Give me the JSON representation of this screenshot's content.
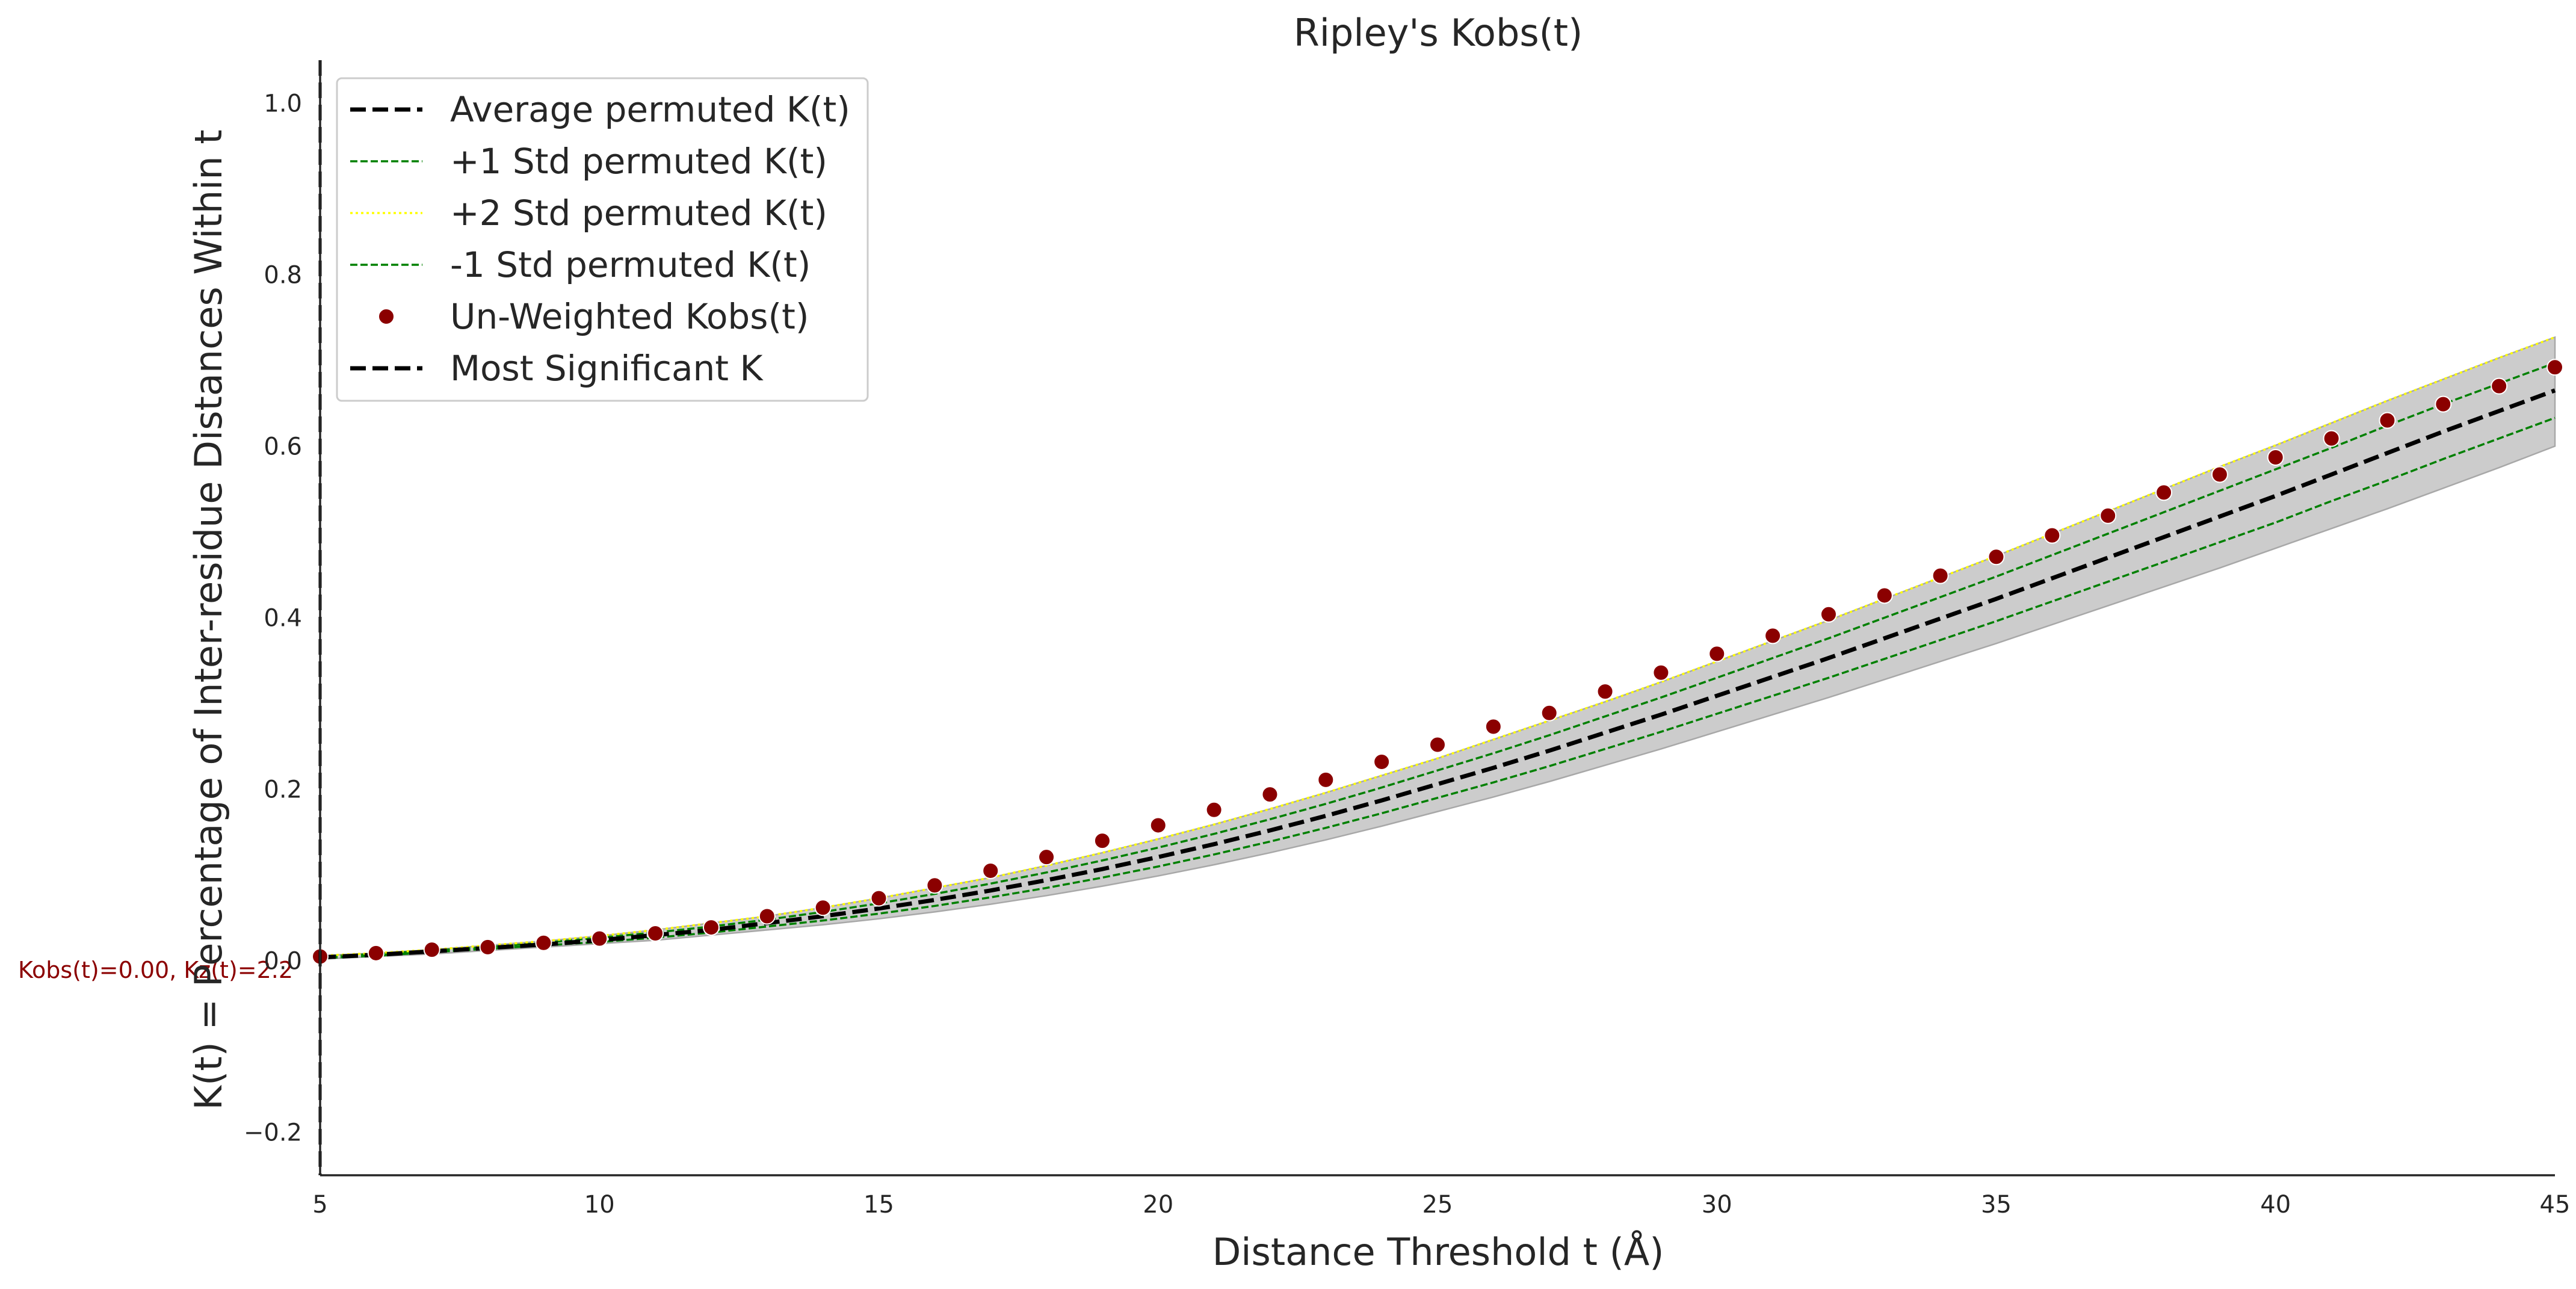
{
  "chart_data": {
    "type": "line",
    "title": "Ripley's Kobs(t)",
    "xlabel": "Distance Threshold t (Å)",
    "ylabel": "K(t) = Percentage of Inter-residue Distances Within t",
    "xlim": [
      5,
      45
    ],
    "ylim": [
      -0.25,
      1.05
    ],
    "xticks": [
      5,
      10,
      15,
      20,
      25,
      30,
      35,
      40,
      45
    ],
    "xtick_labels": [
      "5",
      "10",
      "15",
      "20",
      "25",
      "30",
      "35",
      "40",
      "45"
    ],
    "yticks": [
      -0.2,
      0.0,
      0.2,
      0.4,
      0.6,
      0.8,
      1.0
    ],
    "ytick_labels": [
      "−0.2",
      "0.0",
      "0.2",
      "0.4",
      "0.6",
      "0.8",
      "1.0"
    ],
    "grid": false,
    "legend_position": "upper-left",
    "x": [
      5,
      6,
      7,
      8,
      9,
      10,
      11,
      12,
      13,
      14,
      15,
      16,
      17,
      18,
      19,
      20,
      21,
      22,
      23,
      24,
      25,
      26,
      27,
      28,
      29,
      30,
      31,
      32,
      33,
      34,
      35,
      36,
      37,
      38,
      39,
      40,
      41,
      42,
      43,
      44,
      45
    ],
    "series": [
      {
        "name": "Average permuted K(t)",
        "style": "dashed",
        "color": "#000000",
        "values": [
          0.004,
          0.007,
          0.011,
          0.015,
          0.019,
          0.024,
          0.03,
          0.036,
          0.044,
          0.052,
          0.061,
          0.071,
          0.082,
          0.094,
          0.107,
          0.121,
          0.136,
          0.152,
          0.169,
          0.187,
          0.206,
          0.225,
          0.245,
          0.266,
          0.287,
          0.309,
          0.331,
          0.353,
          0.376,
          0.399,
          0.422,
          0.446,
          0.47,
          0.494,
          0.518,
          0.542,
          0.567,
          0.592,
          0.617,
          0.641,
          0.665
        ]
      },
      {
        "name": "+1 Std permuted K(t)",
        "style": "dashed-thin",
        "color": "#008000",
        "values": [
          0.005,
          0.008,
          0.012,
          0.016,
          0.021,
          0.027,
          0.033,
          0.04,
          0.048,
          0.057,
          0.067,
          0.078,
          0.09,
          0.103,
          0.117,
          0.132,
          0.148,
          0.165,
          0.183,
          0.202,
          0.222,
          0.242,
          0.263,
          0.285,
          0.307,
          0.33,
          0.353,
          0.376,
          0.4,
          0.424,
          0.448,
          0.473,
          0.498,
          0.523,
          0.548,
          0.573,
          0.598,
          0.624,
          0.649,
          0.673,
          0.697
        ]
      },
      {
        "name": "+2 Std permuted K(t)",
        "style": "dotted",
        "color": "#ffff00",
        "values": [
          0.006,
          0.009,
          0.013,
          0.018,
          0.023,
          0.029,
          0.036,
          0.044,
          0.052,
          0.062,
          0.073,
          0.085,
          0.097,
          0.111,
          0.126,
          0.142,
          0.159,
          0.177,
          0.196,
          0.216,
          0.236,
          0.258,
          0.28,
          0.302,
          0.325,
          0.349,
          0.373,
          0.397,
          0.422,
          0.447,
          0.472,
          0.498,
          0.524,
          0.55,
          0.576,
          0.601,
          0.627,
          0.653,
          0.678,
          0.703,
          0.727
        ]
      },
      {
        "name": "-1 Std permuted K(t)",
        "style": "dashed-thin",
        "color": "#008000",
        "values": [
          0.003,
          0.006,
          0.01,
          0.014,
          0.018,
          0.022,
          0.027,
          0.033,
          0.04,
          0.047,
          0.055,
          0.064,
          0.074,
          0.085,
          0.097,
          0.11,
          0.124,
          0.139,
          0.155,
          0.172,
          0.19,
          0.208,
          0.227,
          0.247,
          0.267,
          0.288,
          0.309,
          0.33,
          0.352,
          0.374,
          0.396,
          0.419,
          0.442,
          0.465,
          0.488,
          0.511,
          0.536,
          0.56,
          0.585,
          0.609,
          0.633
        ]
      },
      {
        "name": "Un-Weighted Kobs(t)",
        "style": "scatter",
        "color": "#8b0000",
        "values": [
          0.005,
          0.009,
          0.013,
          0.016,
          0.021,
          0.026,
          0.032,
          0.039,
          0.052,
          0.062,
          0.073,
          0.088,
          0.105,
          0.121,
          0.14,
          0.158,
          0.176,
          0.194,
          0.211,
          0.232,
          0.252,
          0.273,
          0.289,
          0.314,
          0.336,
          0.358,
          0.379,
          0.404,
          0.426,
          0.449,
          0.471,
          0.496,
          0.519,
          0.546,
          0.567,
          0.587,
          0.609,
          0.63,
          0.649,
          0.67,
          0.692
        ]
      }
    ],
    "band": {
      "upper": [
        0.006,
        0.009,
        0.013,
        0.018,
        0.023,
        0.029,
        0.036,
        0.044,
        0.052,
        0.062,
        0.073,
        0.085,
        0.097,
        0.111,
        0.126,
        0.142,
        0.159,
        0.177,
        0.196,
        0.216,
        0.236,
        0.258,
        0.28,
        0.302,
        0.325,
        0.349,
        0.373,
        0.397,
        0.422,
        0.447,
        0.472,
        0.498,
        0.524,
        0.55,
        0.576,
        0.601,
        0.627,
        0.653,
        0.678,
        0.703,
        0.727
      ],
      "lower": [
        0.002,
        0.005,
        0.008,
        0.012,
        0.016,
        0.02,
        0.024,
        0.03,
        0.036,
        0.042,
        0.049,
        0.057,
        0.066,
        0.076,
        0.087,
        0.099,
        0.112,
        0.126,
        0.141,
        0.157,
        0.174,
        0.191,
        0.209,
        0.228,
        0.247,
        0.267,
        0.287,
        0.307,
        0.328,
        0.349,
        0.37,
        0.392,
        0.414,
        0.436,
        0.458,
        0.481,
        0.504,
        0.527,
        0.551,
        0.575,
        0.6
      ],
      "color": "#cccccc"
    },
    "most_significant": {
      "name": "Most Significant K",
      "x": 5,
      "annotation": "Kobs(t)=0.00, Kz(t)=2.2"
    },
    "legend": [
      {
        "label": "Average permuted K(t)",
        "kind": "line",
        "style": "dashed",
        "color": "#000000"
      },
      {
        "label": "+1 Std permuted K(t)",
        "kind": "line",
        "style": "dashed-thin",
        "color": "#008000"
      },
      {
        "label": "+2 Std permuted K(t)",
        "kind": "line",
        "style": "dotted",
        "color": "#ffff00"
      },
      {
        "label": "-1 Std permuted K(t)",
        "kind": "line",
        "style": "dashed-thin",
        "color": "#008000"
      },
      {
        "label": "Un-Weighted Kobs(t)",
        "kind": "marker",
        "color": "#8b0000"
      },
      {
        "label": "Most Significant K",
        "kind": "line",
        "style": "dashed",
        "color": "#000000"
      }
    ]
  }
}
